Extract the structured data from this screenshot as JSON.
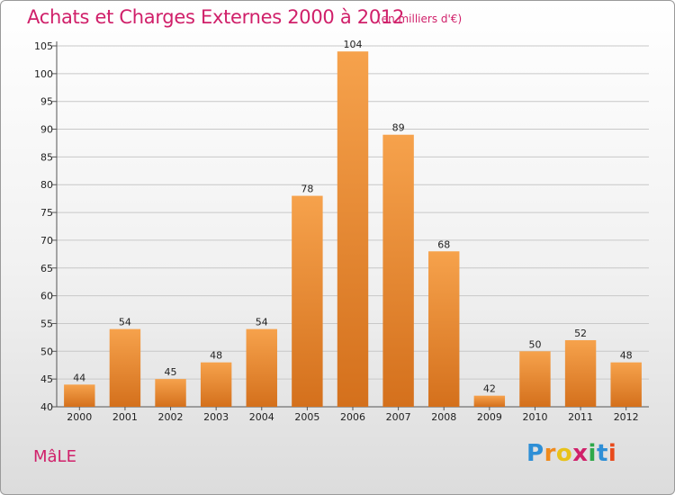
{
  "header": {
    "title": "Achats et Charges Externes 2000 à 2012",
    "subtitle": "(en milliers d'€)"
  },
  "footer": {
    "commune": "MâLE",
    "logo_letters": [
      "P",
      "r",
      "o",
      "x",
      "i",
      "t",
      "i"
    ]
  },
  "colors": {
    "title": "#d0206a",
    "bar_top": "#f6a24c",
    "bar_bottom": "#d4701c",
    "grid": "#c8c8c8",
    "logo": [
      "#2e8fd6",
      "#f08a1c",
      "#e8c21a",
      "#d0206a",
      "#2ea84a",
      "#2e8fd6",
      "#e84a1c"
    ]
  },
  "chart_data": {
    "type": "bar",
    "categories": [
      "2000",
      "2001",
      "2002",
      "2003",
      "2004",
      "2005",
      "2006",
      "2007",
      "2008",
      "2009",
      "2010",
      "2011",
      "2012"
    ],
    "values": [
      44,
      54,
      45,
      48,
      54,
      78,
      104,
      89,
      68,
      42,
      50,
      52,
      48
    ],
    "value_labels": [
      "44",
      "54",
      "45",
      "48",
      "54",
      "78",
      "104",
      "89",
      "68",
      "42",
      "50",
      "52",
      "48"
    ],
    "title": "Achats et Charges Externes 2000 à 2012",
    "ylim": [
      40,
      105
    ],
    "yticks": [
      40,
      45,
      50,
      55,
      60,
      65,
      70,
      75,
      80,
      85,
      90,
      95,
      100,
      105
    ],
    "grid": true
  }
}
